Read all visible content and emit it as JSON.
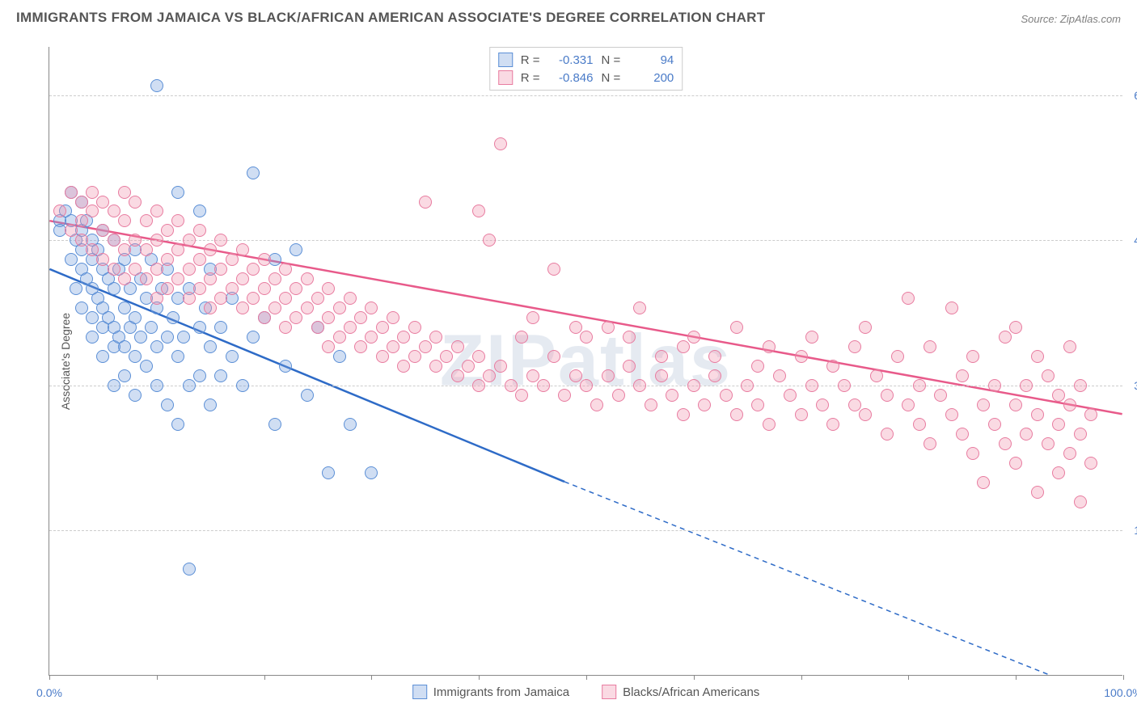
{
  "title": "IMMIGRANTS FROM JAMAICA VS BLACK/AFRICAN AMERICAN ASSOCIATE'S DEGREE CORRELATION CHART",
  "source": "Source: ZipAtlas.com",
  "watermark": "ZIPatlas",
  "ylabel": "Associate's Degree",
  "chart": {
    "type": "scatter",
    "xlim": [
      0,
      100
    ],
    "ylim": [
      0,
      65
    ],
    "yticks": [
      {
        "v": 15,
        "label": "15.0%"
      },
      {
        "v": 30,
        "label": "30.0%"
      },
      {
        "v": 45,
        "label": "45.0%"
      },
      {
        "v": 60,
        "label": "60.0%"
      }
    ],
    "xticks": [
      0,
      10,
      20,
      30,
      40,
      50,
      60,
      70,
      80,
      90,
      100
    ],
    "xtick_labels": [
      {
        "v": 0,
        "label": "0.0%"
      },
      {
        "v": 100,
        "label": "100.0%"
      }
    ],
    "background_color": "#ffffff",
    "grid_color": "#cccccc",
    "marker_radius": 8,
    "marker_border_width": 1.5,
    "series": [
      {
        "name": "Immigrants from Jamaica",
        "fill_color": "rgba(120,160,220,0.35)",
        "border_color": "#5b8fd6",
        "line_color": "#2e6bc7",
        "R": "-0.331",
        "N": "94",
        "trend": {
          "x1": 0,
          "y1": 42,
          "x2": 48,
          "y2": 20,
          "x2_ext": 100,
          "y2_ext": -3
        },
        "points": [
          [
            1,
            47
          ],
          [
            1,
            46
          ],
          [
            1.5,
            48
          ],
          [
            2,
            50
          ],
          [
            2,
            47
          ],
          [
            2,
            43
          ],
          [
            2.5,
            45
          ],
          [
            2.5,
            40
          ],
          [
            3,
            49
          ],
          [
            3,
            46
          ],
          [
            3,
            44
          ],
          [
            3,
            42
          ],
          [
            3,
            38
          ],
          [
            3.5,
            47
          ],
          [
            3.5,
            41
          ],
          [
            4,
            45
          ],
          [
            4,
            43
          ],
          [
            4,
            40
          ],
          [
            4,
            37
          ],
          [
            4,
            35
          ],
          [
            4.5,
            44
          ],
          [
            4.5,
            39
          ],
          [
            5,
            46
          ],
          [
            5,
            42
          ],
          [
            5,
            38
          ],
          [
            5,
            36
          ],
          [
            5,
            33
          ],
          [
            5.5,
            41
          ],
          [
            5.5,
            37
          ],
          [
            6,
            45
          ],
          [
            6,
            40
          ],
          [
            6,
            36
          ],
          [
            6,
            34
          ],
          [
            6,
            30
          ],
          [
            6.5,
            42
          ],
          [
            6.5,
            35
          ],
          [
            7,
            43
          ],
          [
            7,
            38
          ],
          [
            7,
            34
          ],
          [
            7,
            31
          ],
          [
            7.5,
            40
          ],
          [
            7.5,
            36
          ],
          [
            8,
            44
          ],
          [
            8,
            37
          ],
          [
            8,
            33
          ],
          [
            8,
            29
          ],
          [
            8.5,
            41
          ],
          [
            8.5,
            35
          ],
          [
            9,
            39
          ],
          [
            9,
            32
          ],
          [
            9.5,
            43
          ],
          [
            9.5,
            36
          ],
          [
            10,
            61
          ],
          [
            10,
            38
          ],
          [
            10,
            34
          ],
          [
            10,
            30
          ],
          [
            10.5,
            40
          ],
          [
            11,
            42
          ],
          [
            11,
            35
          ],
          [
            11,
            28
          ],
          [
            11.5,
            37
          ],
          [
            12,
            50
          ],
          [
            12,
            39
          ],
          [
            12,
            33
          ],
          [
            12,
            26
          ],
          [
            12.5,
            35
          ],
          [
            13,
            40
          ],
          [
            13,
            30
          ],
          [
            13,
            11
          ],
          [
            14,
            48
          ],
          [
            14,
            36
          ],
          [
            14,
            31
          ],
          [
            14.5,
            38
          ],
          [
            15,
            42
          ],
          [
            15,
            34
          ],
          [
            15,
            28
          ],
          [
            16,
            36
          ],
          [
            16,
            31
          ],
          [
            17,
            39
          ],
          [
            17,
            33
          ],
          [
            18,
            30
          ],
          [
            19,
            52
          ],
          [
            19,
            35
          ],
          [
            20,
            37
          ],
          [
            21,
            43
          ],
          [
            21,
            26
          ],
          [
            22,
            32
          ],
          [
            23,
            44
          ],
          [
            24,
            29
          ],
          [
            25,
            36
          ],
          [
            26,
            21
          ],
          [
            27,
            33
          ],
          [
            28,
            26
          ],
          [
            30,
            21
          ]
        ]
      },
      {
        "name": "Blacks/African Americans",
        "fill_color": "rgba(240,150,175,0.35)",
        "border_color": "#e87ca0",
        "line_color": "#e85a8a",
        "R": "-0.846",
        "N": "200",
        "trend": {
          "x1": 0,
          "y1": 47,
          "x2": 100,
          "y2": 27
        },
        "points": [
          [
            1,
            48
          ],
          [
            2,
            50
          ],
          [
            2,
            46
          ],
          [
            3,
            49
          ],
          [
            3,
            47
          ],
          [
            3,
            45
          ],
          [
            4,
            50
          ],
          [
            4,
            48
          ],
          [
            4,
            44
          ],
          [
            5,
            49
          ],
          [
            5,
            46
          ],
          [
            5,
            43
          ],
          [
            6,
            48
          ],
          [
            6,
            45
          ],
          [
            6,
            42
          ],
          [
            7,
            50
          ],
          [
            7,
            47
          ],
          [
            7,
            44
          ],
          [
            7,
            41
          ],
          [
            8,
            49
          ],
          [
            8,
            45
          ],
          [
            8,
            42
          ],
          [
            9,
            47
          ],
          [
            9,
            44
          ],
          [
            9,
            41
          ],
          [
            10,
            48
          ],
          [
            10,
            45
          ],
          [
            10,
            42
          ],
          [
            10,
            39
          ],
          [
            11,
            46
          ],
          [
            11,
            43
          ],
          [
            11,
            40
          ],
          [
            12,
            47
          ],
          [
            12,
            44
          ],
          [
            12,
            41
          ],
          [
            13,
            45
          ],
          [
            13,
            42
          ],
          [
            13,
            39
          ],
          [
            14,
            46
          ],
          [
            14,
            43
          ],
          [
            14,
            40
          ],
          [
            15,
            44
          ],
          [
            15,
            41
          ],
          [
            15,
            38
          ],
          [
            16,
            45
          ],
          [
            16,
            42
          ],
          [
            16,
            39
          ],
          [
            17,
            43
          ],
          [
            17,
            40
          ],
          [
            18,
            44
          ],
          [
            18,
            41
          ],
          [
            18,
            38
          ],
          [
            19,
            42
          ],
          [
            19,
            39
          ],
          [
            20,
            43
          ],
          [
            20,
            40
          ],
          [
            20,
            37
          ],
          [
            21,
            41
          ],
          [
            21,
            38
          ],
          [
            22,
            42
          ],
          [
            22,
            39
          ],
          [
            22,
            36
          ],
          [
            23,
            40
          ],
          [
            23,
            37
          ],
          [
            24,
            41
          ],
          [
            24,
            38
          ],
          [
            25,
            39
          ],
          [
            25,
            36
          ],
          [
            26,
            40
          ],
          [
            26,
            37
          ],
          [
            26,
            34
          ],
          [
            27,
            38
          ],
          [
            27,
            35
          ],
          [
            28,
            39
          ],
          [
            28,
            36
          ],
          [
            29,
            37
          ],
          [
            29,
            34
          ],
          [
            30,
            38
          ],
          [
            30,
            35
          ],
          [
            31,
            36
          ],
          [
            31,
            33
          ],
          [
            32,
            37
          ],
          [
            32,
            34
          ],
          [
            33,
            35
          ],
          [
            33,
            32
          ],
          [
            34,
            36
          ],
          [
            34,
            33
          ],
          [
            35,
            49
          ],
          [
            35,
            34
          ],
          [
            36,
            35
          ],
          [
            36,
            32
          ],
          [
            37,
            33
          ],
          [
            38,
            34
          ],
          [
            38,
            31
          ],
          [
            39,
            32
          ],
          [
            40,
            48
          ],
          [
            40,
            33
          ],
          [
            40,
            30
          ],
          [
            41,
            45
          ],
          [
            41,
            31
          ],
          [
            42,
            55
          ],
          [
            42,
            32
          ],
          [
            43,
            30
          ],
          [
            44,
            35
          ],
          [
            44,
            29
          ],
          [
            45,
            37
          ],
          [
            45,
            31
          ],
          [
            46,
            30
          ],
          [
            47,
            42
          ],
          [
            47,
            33
          ],
          [
            48,
            29
          ],
          [
            49,
            36
          ],
          [
            49,
            31
          ],
          [
            50,
            35
          ],
          [
            50,
            30
          ],
          [
            51,
            28
          ],
          [
            52,
            36
          ],
          [
            52,
            31
          ],
          [
            53,
            29
          ],
          [
            54,
            35
          ],
          [
            54,
            32
          ],
          [
            55,
            38
          ],
          [
            55,
            30
          ],
          [
            56,
            28
          ],
          [
            57,
            33
          ],
          [
            57,
            31
          ],
          [
            58,
            29
          ],
          [
            59,
            34
          ],
          [
            59,
            27
          ],
          [
            60,
            35
          ],
          [
            60,
            30
          ],
          [
            61,
            28
          ],
          [
            62,
            33
          ],
          [
            62,
            31
          ],
          [
            63,
            29
          ],
          [
            64,
            36
          ],
          [
            64,
            27
          ],
          [
            65,
            30
          ],
          [
            66,
            32
          ],
          [
            66,
            28
          ],
          [
            67,
            34
          ],
          [
            67,
            26
          ],
          [
            68,
            31
          ],
          [
            69,
            29
          ],
          [
            70,
            33
          ],
          [
            70,
            27
          ],
          [
            71,
            35
          ],
          [
            71,
            30
          ],
          [
            72,
            28
          ],
          [
            73,
            32
          ],
          [
            73,
            26
          ],
          [
            74,
            30
          ],
          [
            75,
            34
          ],
          [
            75,
            28
          ],
          [
            76,
            36
          ],
          [
            76,
            27
          ],
          [
            77,
            31
          ],
          [
            78,
            29
          ],
          [
            78,
            25
          ],
          [
            79,
            33
          ],
          [
            80,
            39
          ],
          [
            80,
            28
          ],
          [
            81,
            30
          ],
          [
            81,
            26
          ],
          [
            82,
            34
          ],
          [
            82,
            24
          ],
          [
            83,
            29
          ],
          [
            84,
            38
          ],
          [
            84,
            27
          ],
          [
            85,
            31
          ],
          [
            85,
            25
          ],
          [
            86,
            33
          ],
          [
            86,
            23
          ],
          [
            87,
            28
          ],
          [
            87,
            20
          ],
          [
            88,
            30
          ],
          [
            88,
            26
          ],
          [
            89,
            35
          ],
          [
            89,
            24
          ],
          [
            90,
            36
          ],
          [
            90,
            28
          ],
          [
            90,
            22
          ],
          [
            91,
            30
          ],
          [
            91,
            25
          ],
          [
            92,
            33
          ],
          [
            92,
            27
          ],
          [
            92,
            19
          ],
          [
            93,
            31
          ],
          [
            93,
            24
          ],
          [
            94,
            29
          ],
          [
            94,
            26
          ],
          [
            94,
            21
          ],
          [
            95,
            34
          ],
          [
            95,
            28
          ],
          [
            95,
            23
          ],
          [
            96,
            30
          ],
          [
            96,
            25
          ],
          [
            96,
            18
          ],
          [
            97,
            27
          ],
          [
            97,
            22
          ]
        ]
      }
    ]
  },
  "legend": {
    "series1": "Immigrants from Jamaica",
    "series2": "Blacks/African Americans"
  }
}
